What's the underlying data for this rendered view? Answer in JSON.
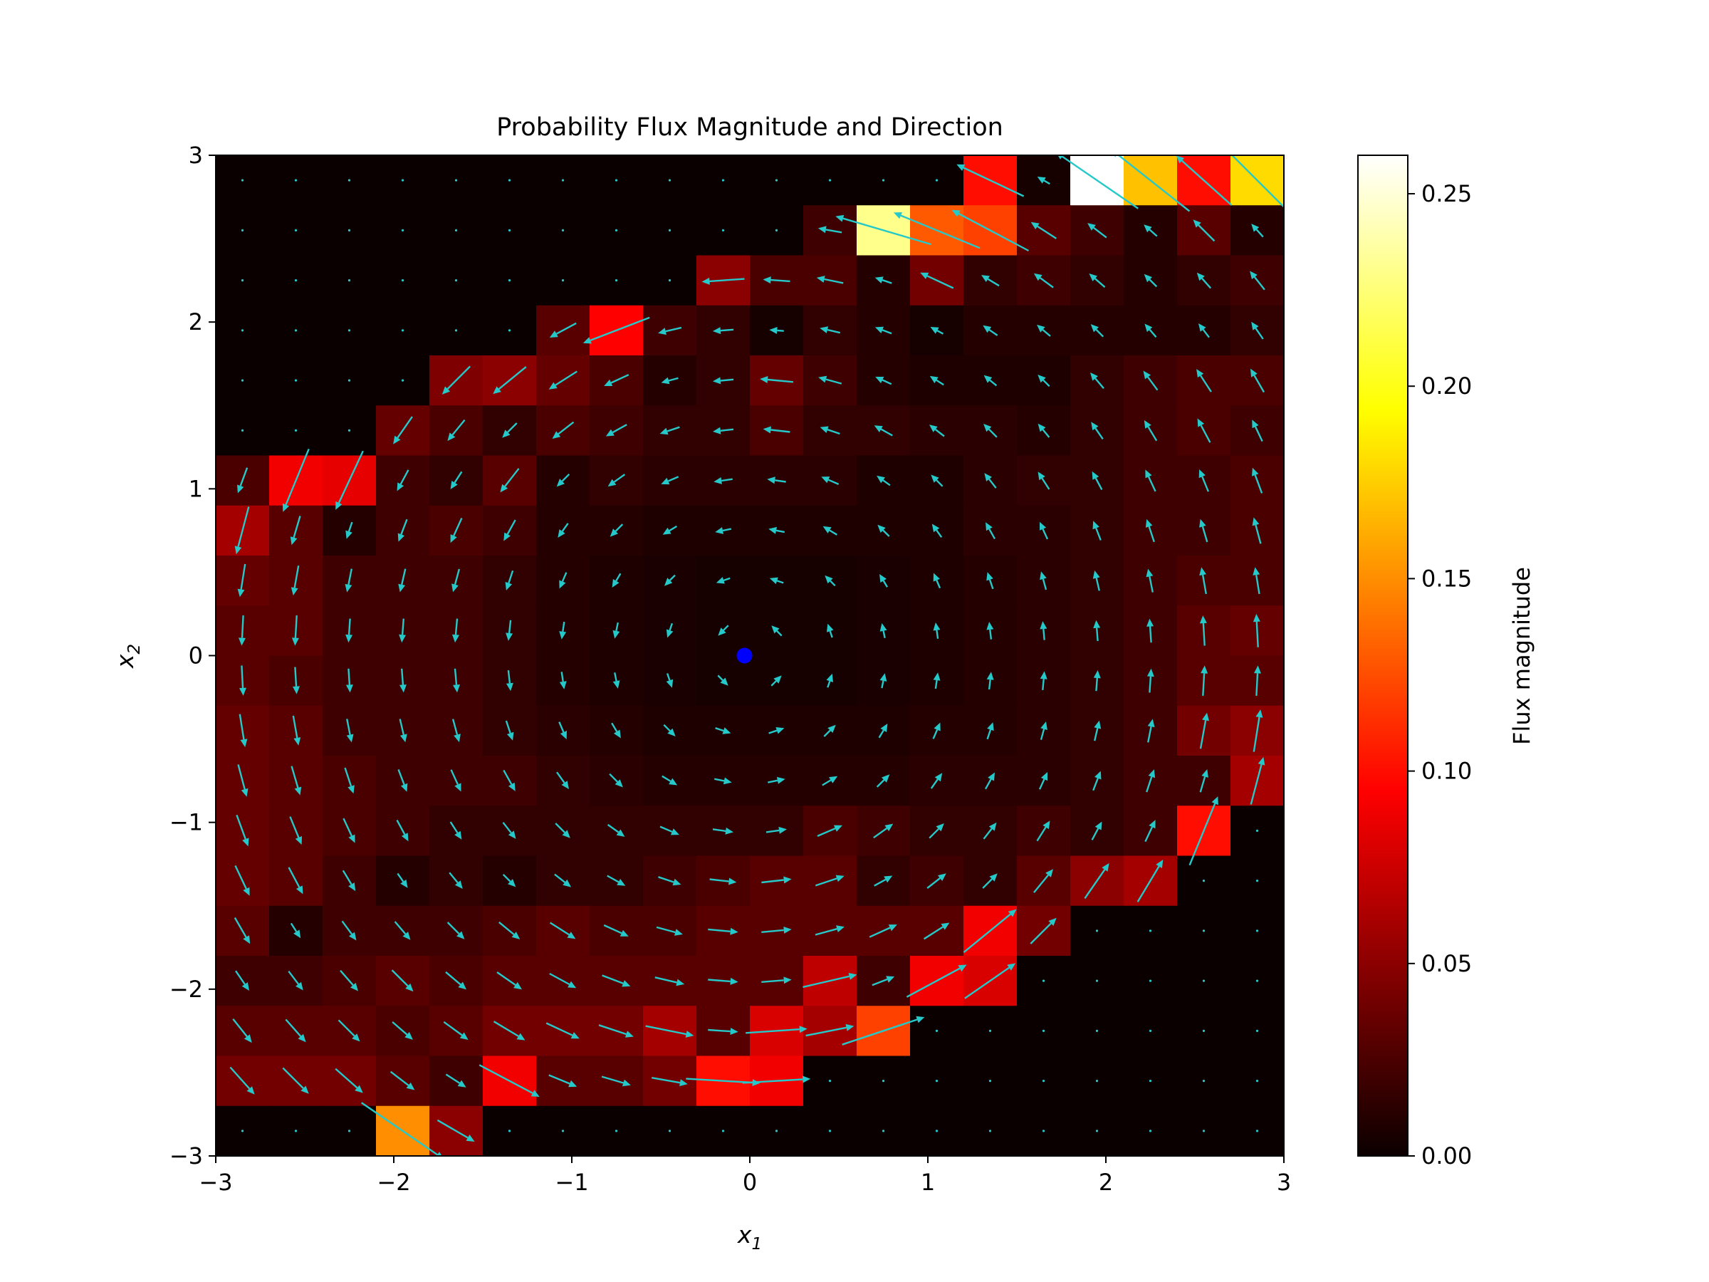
{
  "chart_data": {
    "type": "heatmap",
    "title": "Probability Flux Magnitude and Direction",
    "xlabel": "x",
    "xlabel_sub": "1",
    "ylabel": "x",
    "ylabel_sub": "2",
    "xlim": [
      -3,
      3
    ],
    "ylim": [
      -3,
      3
    ],
    "xticks": [
      -3,
      -2,
      -1,
      0,
      1,
      2,
      3
    ],
    "yticks": [
      -3,
      -2,
      -1,
      0,
      1,
      2,
      3
    ],
    "xtick_labels": [
      "−3",
      "−2",
      "−1",
      "0",
      "1",
      "2",
      "3"
    ],
    "ytick_labels": [
      "−3",
      "−2",
      "−1",
      "0",
      "1",
      "2",
      "3"
    ],
    "grid": false,
    "grid_size": 20,
    "quiver_color": "#26c9c9",
    "colormap": "hot",
    "colorbar": {
      "label": "Flux magnitude",
      "range": [
        0,
        0.26
      ],
      "ticks": [
        0,
        0.05,
        0.1,
        0.15,
        0.2,
        0.25
      ],
      "tick_labels": [
        "0.00",
        "0.05",
        "0.10",
        "0.15",
        "0.20",
        "0.25"
      ]
    },
    "marker": {
      "x": -0.03,
      "y": 0.0,
      "color": "#0000ff"
    },
    "flux_magnitude_rows_top_to_bottom": [
      [
        0.0,
        0.0,
        0.0,
        0.0,
        0.0,
        0.0,
        0.0,
        0.0,
        0.0,
        0.0,
        0.0,
        0.0,
        0.0,
        0.0,
        0.1,
        0.005,
        0.26,
        0.17,
        0.1,
        0.18
      ],
      [
        0.0,
        0.0,
        0.0,
        0.0,
        0.0,
        0.0,
        0.0,
        0.0,
        0.0,
        0.0,
        0.0,
        0.02,
        0.23,
        0.13,
        0.12,
        0.03,
        0.02,
        0.01,
        0.03,
        0.01
      ],
      [
        0.0,
        0.0,
        0.0,
        0.0,
        0.0,
        0.0,
        0.0,
        0.0,
        0.0,
        0.05,
        0.025,
        0.025,
        0.01,
        0.04,
        0.015,
        0.02,
        0.015,
        0.01,
        0.015,
        0.02
      ],
      [
        0.0,
        0.0,
        0.0,
        0.0,
        0.0,
        0.0,
        0.03,
        0.095,
        0.02,
        0.015,
        0.005,
        0.015,
        0.01,
        0.005,
        0.01,
        0.01,
        0.01,
        0.01,
        0.01,
        0.015
      ],
      [
        0.0,
        0.0,
        0.0,
        0.0,
        0.045,
        0.05,
        0.035,
        0.025,
        0.01,
        0.015,
        0.035,
        0.02,
        0.01,
        0.008,
        0.008,
        0.008,
        0.015,
        0.02,
        0.025,
        0.025
      ],
      [
        0.0,
        0.0,
        0.0,
        0.035,
        0.025,
        0.015,
        0.025,
        0.02,
        0.015,
        0.015,
        0.025,
        0.015,
        0.015,
        0.012,
        0.012,
        0.01,
        0.015,
        0.02,
        0.025,
        0.02
      ],
      [
        0.025,
        0.09,
        0.085,
        0.02,
        0.015,
        0.03,
        0.01,
        0.015,
        0.012,
        0.012,
        0.012,
        0.012,
        0.008,
        0.008,
        0.012,
        0.015,
        0.015,
        0.02,
        0.02,
        0.025
      ],
      [
        0.06,
        0.03,
        0.01,
        0.02,
        0.025,
        0.02,
        0.01,
        0.01,
        0.008,
        0.008,
        0.008,
        0.008,
        0.008,
        0.008,
        0.012,
        0.012,
        0.015,
        0.02,
        0.02,
        0.025
      ],
      [
        0.035,
        0.03,
        0.02,
        0.02,
        0.02,
        0.015,
        0.01,
        0.008,
        0.006,
        0.005,
        0.005,
        0.005,
        0.006,
        0.008,
        0.01,
        0.012,
        0.015,
        0.02,
        0.025,
        0.025
      ],
      [
        0.03,
        0.03,
        0.02,
        0.02,
        0.02,
        0.015,
        0.01,
        0.008,
        0.006,
        0.005,
        0.005,
        0.005,
        0.006,
        0.008,
        0.01,
        0.012,
        0.015,
        0.02,
        0.03,
        0.035
      ],
      [
        0.03,
        0.025,
        0.02,
        0.02,
        0.02,
        0.015,
        0.01,
        0.008,
        0.006,
        0.005,
        0.005,
        0.005,
        0.006,
        0.008,
        0.01,
        0.012,
        0.015,
        0.02,
        0.03,
        0.03
      ],
      [
        0.035,
        0.03,
        0.02,
        0.02,
        0.02,
        0.015,
        0.012,
        0.01,
        0.008,
        0.008,
        0.008,
        0.008,
        0.008,
        0.01,
        0.01,
        0.012,
        0.015,
        0.02,
        0.04,
        0.05
      ],
      [
        0.035,
        0.03,
        0.025,
        0.02,
        0.02,
        0.02,
        0.015,
        0.012,
        0.01,
        0.01,
        0.01,
        0.01,
        0.01,
        0.012,
        0.012,
        0.012,
        0.015,
        0.02,
        0.02,
        0.06
      ],
      [
        0.035,
        0.03,
        0.025,
        0.02,
        0.015,
        0.015,
        0.015,
        0.015,
        0.015,
        0.015,
        0.015,
        0.025,
        0.02,
        0.015,
        0.015,
        0.02,
        0.015,
        0.02,
        0.1,
        0.0
      ],
      [
        0.035,
        0.03,
        0.02,
        0.01,
        0.015,
        0.01,
        0.015,
        0.015,
        0.02,
        0.025,
        0.03,
        0.03,
        0.015,
        0.02,
        0.015,
        0.03,
        0.05,
        0.06,
        0.0,
        0.0
      ],
      [
        0.03,
        0.01,
        0.02,
        0.02,
        0.02,
        0.025,
        0.03,
        0.025,
        0.025,
        0.03,
        0.03,
        0.03,
        0.03,
        0.03,
        0.09,
        0.04,
        0.0,
        0.0,
        0.0,
        0.0
      ],
      [
        0.02,
        0.02,
        0.025,
        0.03,
        0.025,
        0.03,
        0.03,
        0.03,
        0.03,
        0.03,
        0.03,
        0.07,
        0.02,
        0.09,
        0.08,
        0.0,
        0.0,
        0.0,
        0.0,
        0.0
      ],
      [
        0.03,
        0.03,
        0.03,
        0.025,
        0.03,
        0.04,
        0.04,
        0.04,
        0.06,
        0.03,
        0.08,
        0.06,
        0.12,
        0.0,
        0.0,
        0.0,
        0.0,
        0.0,
        0.0,
        0.0
      ],
      [
        0.04,
        0.04,
        0.04,
        0.03,
        0.02,
        0.09,
        0.03,
        0.03,
        0.04,
        0.1,
        0.09,
        0.0,
        0.0,
        0.0,
        0.0,
        0.0,
        0.0,
        0.0,
        0.0,
        0.0
      ],
      [
        0.0,
        0.0,
        0.0,
        0.15,
        0.05,
        0.0,
        0.0,
        0.0,
        0.0,
        0.0,
        0.0,
        0.0,
        0.0,
        0.0,
        0.0,
        0.0,
        0.0,
        0.0,
        0.0,
        0.0
      ]
    ]
  }
}
